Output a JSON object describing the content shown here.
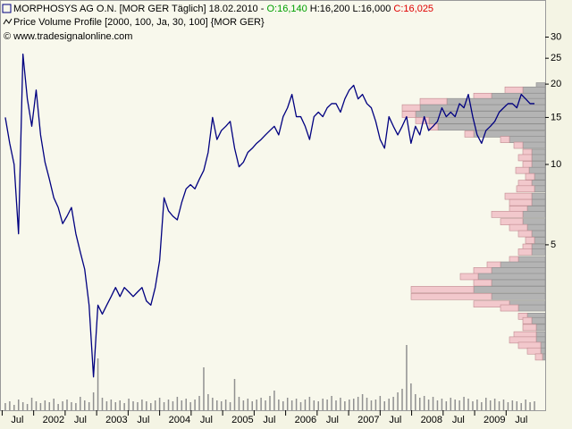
{
  "chart_data": {
    "type": "line",
    "title": "MORPHOSYS AG O.N. [MOR GER  Täglich] 18.02.2010 -",
    "quote": {
      "open": "O:16,140",
      "high": "H:16,200",
      "low": "L:16,000",
      "close": "C:16,025",
      "open_color": "#00a000",
      "close_color": "#e00000"
    },
    "subtitle": "Price Volume Profile [2000, 100, Ja, 30, 100] {MOR GER}",
    "copyright": "© www.tradesignalonline.com",
    "log_y": true,
    "ylim": [
      1.2,
      41
    ],
    "yticks": [
      30,
      25,
      20,
      15,
      10,
      5
    ],
    "xlim": [
      2001.48,
      2010.12
    ],
    "xticks": [
      {
        "value": 2001.5,
        "label": "Jul"
      },
      2002,
      {
        "value": 2002.5,
        "label": "Jul"
      },
      2003,
      {
        "value": 2003.5,
        "label": "Jul"
      },
      2004,
      {
        "value": 2004.5,
        "label": "Jul"
      },
      2005,
      {
        "value": 2005.5,
        "label": "Jul"
      },
      2006,
      {
        "value": 2006.5,
        "label": "Jul"
      },
      2007,
      {
        "value": 2007.5,
        "label": "Jul"
      },
      2008,
      {
        "value": 2008.5,
        "label": "Jul"
      },
      2009,
      {
        "value": 2009.5,
        "label": "Jul"
      }
    ],
    "x": [
      2001.55,
      2001.62,
      2001.69,
      2001.76,
      2001.83,
      2001.9,
      2001.97,
      2002.04,
      2002.11,
      2002.18,
      2002.25,
      2002.32,
      2002.39,
      2002.46,
      2002.53,
      2002.6,
      2002.67,
      2002.74,
      2002.81,
      2002.88,
      2002.95,
      2003.02,
      2003.09,
      2003.16,
      2003.23,
      2003.3,
      2003.37,
      2003.44,
      2003.51,
      2003.58,
      2003.65,
      2003.72,
      2003.79,
      2003.86,
      2003.93,
      2004.0,
      2004.07,
      2004.14,
      2004.21,
      2004.28,
      2004.35,
      2004.42,
      2004.49,
      2004.56,
      2004.63,
      2004.7,
      2004.77,
      2004.84,
      2004.91,
      2004.98,
      2005.05,
      2005.12,
      2005.19,
      2005.26,
      2005.33,
      2005.4,
      2005.47,
      2005.54,
      2005.61,
      2005.68,
      2005.75,
      2005.82,
      2005.89,
      2005.96,
      2006.03,
      2006.1,
      2006.17,
      2006.24,
      2006.31,
      2006.38,
      2006.45,
      2006.52,
      2006.59,
      2006.66,
      2006.73,
      2006.8,
      2006.87,
      2006.94,
      2007.01,
      2007.08,
      2007.15,
      2007.22,
      2007.29,
      2007.36,
      2007.43,
      2007.5,
      2007.57,
      2007.64,
      2007.71,
      2007.78,
      2007.85,
      2007.92,
      2007.99,
      2008.06,
      2008.13,
      2008.2,
      2008.27,
      2008.34,
      2008.41,
      2008.48,
      2008.55,
      2008.62,
      2008.69,
      2008.76,
      2008.83,
      2008.9,
      2008.97,
      2009.04,
      2009.11,
      2009.18,
      2009.25,
      2009.32,
      2009.39,
      2009.46,
      2009.53,
      2009.6,
      2009.67,
      2009.74,
      2009.81,
      2009.88,
      2009.95
    ],
    "series": [
      {
        "color": "#000080",
        "values": [
          15,
          12,
          10,
          5.5,
          25.9,
          17.6,
          13.9,
          19,
          12.9,
          10.2,
          8.8,
          7.5,
          6.9,
          6.0,
          6.4,
          6.9,
          5.5,
          4.7,
          4.05,
          2.97,
          1.6,
          2.97,
          2.75,
          2.97,
          3.2,
          3.46,
          3.2,
          3.46,
          3.33,
          3.2,
          3.33,
          3.46,
          3.08,
          2.97,
          3.46,
          4.37,
          7.5,
          6.7,
          6.4,
          6.2,
          7.2,
          8.1,
          8.4,
          8.1,
          8.8,
          9.5,
          11.1,
          15,
          12.4,
          13.4,
          13.9,
          14.5,
          11.5,
          9.8,
          10.2,
          11.1,
          11.5,
          12,
          12.4,
          12.9,
          13.4,
          13.9,
          12.9,
          15.1,
          16.3,
          18.3,
          15.1,
          15.1,
          13.9,
          12.4,
          15.1,
          15.7,
          15.1,
          16.3,
          16.9,
          16.9,
          15.7,
          17.6,
          19,
          19.8,
          17.6,
          18.3,
          16.9,
          16.3,
          14.5,
          12.4,
          11.5,
          15.1,
          13.9,
          12.9,
          13.9,
          15.1,
          12,
          13.9,
          12.9,
          15.1,
          13.4,
          13.9,
          14.5,
          16.3,
          15.1,
          15.7,
          15.1,
          16.9,
          16.3,
          18.3,
          15.1,
          12.9,
          12,
          13.4,
          13.9,
          14.5,
          15.7,
          16.3,
          16.9,
          16.9,
          16.3,
          18.3,
          17.6,
          16.9,
          16.9
        ]
      }
    ],
    "volume": {
      "type": "bar",
      "color": "#909090",
      "ylim": [
        0,
        100
      ],
      "values": [
        8,
        10,
        6,
        12,
        9,
        7,
        14,
        10,
        8,
        11,
        9,
        13,
        7,
        10,
        12,
        9,
        8,
        15,
        11,
        9,
        20,
        58,
        14,
        10,
        12,
        9,
        11,
        8,
        13,
        10,
        9,
        12,
        10,
        8,
        11,
        14,
        9,
        12,
        10,
        15,
        11,
        13,
        9,
        12,
        16,
        48,
        18,
        14,
        11,
        10,
        12,
        9,
        35,
        15,
        11,
        13,
        10,
        12,
        14,
        11,
        16,
        22,
        12,
        10,
        14,
        11,
        13,
        9,
        12,
        15,
        11,
        10,
        13,
        12,
        16,
        11,
        14,
        10,
        12,
        13,
        15,
        18,
        14,
        11,
        12,
        16,
        10,
        13,
        15,
        20,
        24,
        73,
        30,
        18,
        14,
        16,
        12,
        15,
        11,
        13,
        10,
        14,
        12,
        11,
        15,
        13,
        10,
        12,
        9,
        14,
        11,
        13,
        10,
        12,
        9,
        11,
        10,
        8,
        12,
        9,
        10
      ]
    },
    "profile": {
      "type": "bar",
      "orientation": "horizontal",
      "xlim": [
        0,
        160
      ],
      "levels": [
        19.7,
        19,
        18,
        17.2,
        16.3,
        15.4,
        14.6,
        13.8,
        13,
        12.4,
        11.8,
        11.1,
        10.6,
        10,
        9.5,
        9,
        8.5,
        8.1,
        7.6,
        7.2,
        6.8,
        6.5,
        6.1,
        5.8,
        5.5,
        5.2,
        4.9,
        4.7,
        4.4,
        4.2,
        4.0,
        3.8,
        3.6,
        3.4,
        3.2,
        3.0,
        2.9,
        2.7,
        2.6,
        2.45,
        2.3,
        2.2,
        2.1,
        2.0,
        1.9
      ],
      "series": [
        {
          "color": "#b4b4b4",
          "values": [
            10,
            25,
            60,
            110,
            140,
            145,
            130,
            120,
            80,
            40,
            25,
            15,
            15,
            15,
            18,
            12,
            15,
            12,
            15,
            15,
            20,
            25,
            25,
            20,
            15,
            12,
            15,
            15,
            30,
            50,
            60,
            75,
            60,
            80,
            60,
            40,
            30,
            20,
            15,
            10,
            10,
            10,
            5,
            5,
            3
          ]
        },
        {
          "color": "#f2c8cc",
          "values": [
            0,
            20,
            20,
            30,
            20,
            15,
            15,
            10,
            10,
            10,
            10,
            10,
            15,
            10,
            15,
            10,
            15,
            20,
            30,
            25,
            20,
            35,
            25,
            20,
            15,
            10,
            10,
            15,
            10,
            15,
            20,
            20,
            20,
            70,
            90,
            40,
            20,
            10,
            10,
            15,
            25,
            30,
            25,
            15,
            8
          ]
        }
      ]
    }
  }
}
